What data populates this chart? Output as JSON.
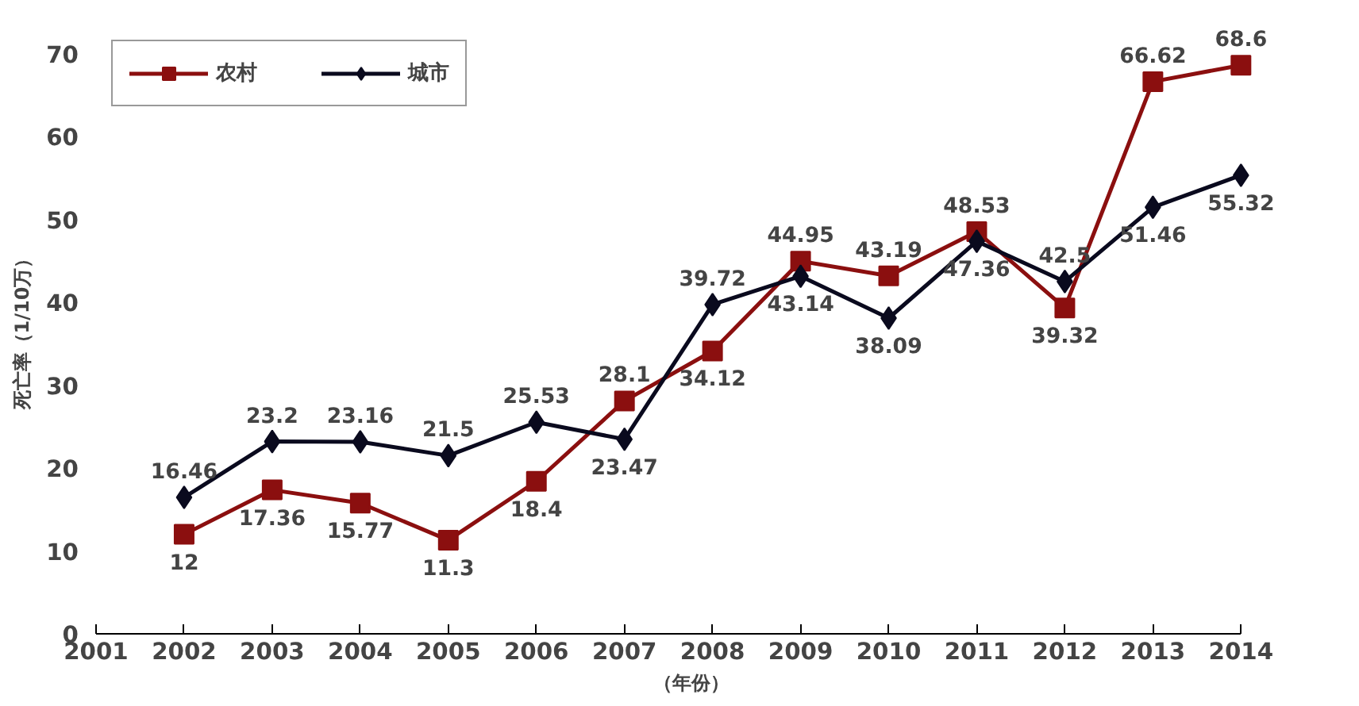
{
  "chart_data": {
    "type": "line",
    "ylabel": "死亡率（1/10万）",
    "xlabel": "（年份）",
    "x": [
      2002,
      2003,
      2004,
      2005,
      2006,
      2007,
      2008,
      2009,
      2010,
      2011,
      2012,
      2013,
      2014
    ],
    "xlim": [
      2001,
      2014
    ],
    "xticks": [
      2001,
      2002,
      2003,
      2004,
      2005,
      2006,
      2007,
      2008,
      2009,
      2010,
      2011,
      2012,
      2013,
      2014
    ],
    "ylim": [
      0,
      70
    ],
    "yticks": [
      0,
      10,
      20,
      30,
      40,
      50,
      60,
      70
    ],
    "series": [
      {
        "name": "农村",
        "color": "#8b0f0f",
        "marker": "square",
        "values": [
          12,
          17.36,
          15.77,
          11.3,
          18.4,
          28.1,
          34.12,
          44.95,
          43.19,
          48.53,
          39.32,
          66.62,
          68.6
        ]
      },
      {
        "name": "城市",
        "color": "#0a0a1e",
        "marker": "diamond",
        "values": [
          16.46,
          23.2,
          23.16,
          21.5,
          25.53,
          23.47,
          39.72,
          43.14,
          38.09,
          47.36,
          42.5,
          51.46,
          55.32
        ]
      }
    ],
    "data_labels": true,
    "grid": false,
    "legend": "top left",
    "line_style": "solid"
  }
}
